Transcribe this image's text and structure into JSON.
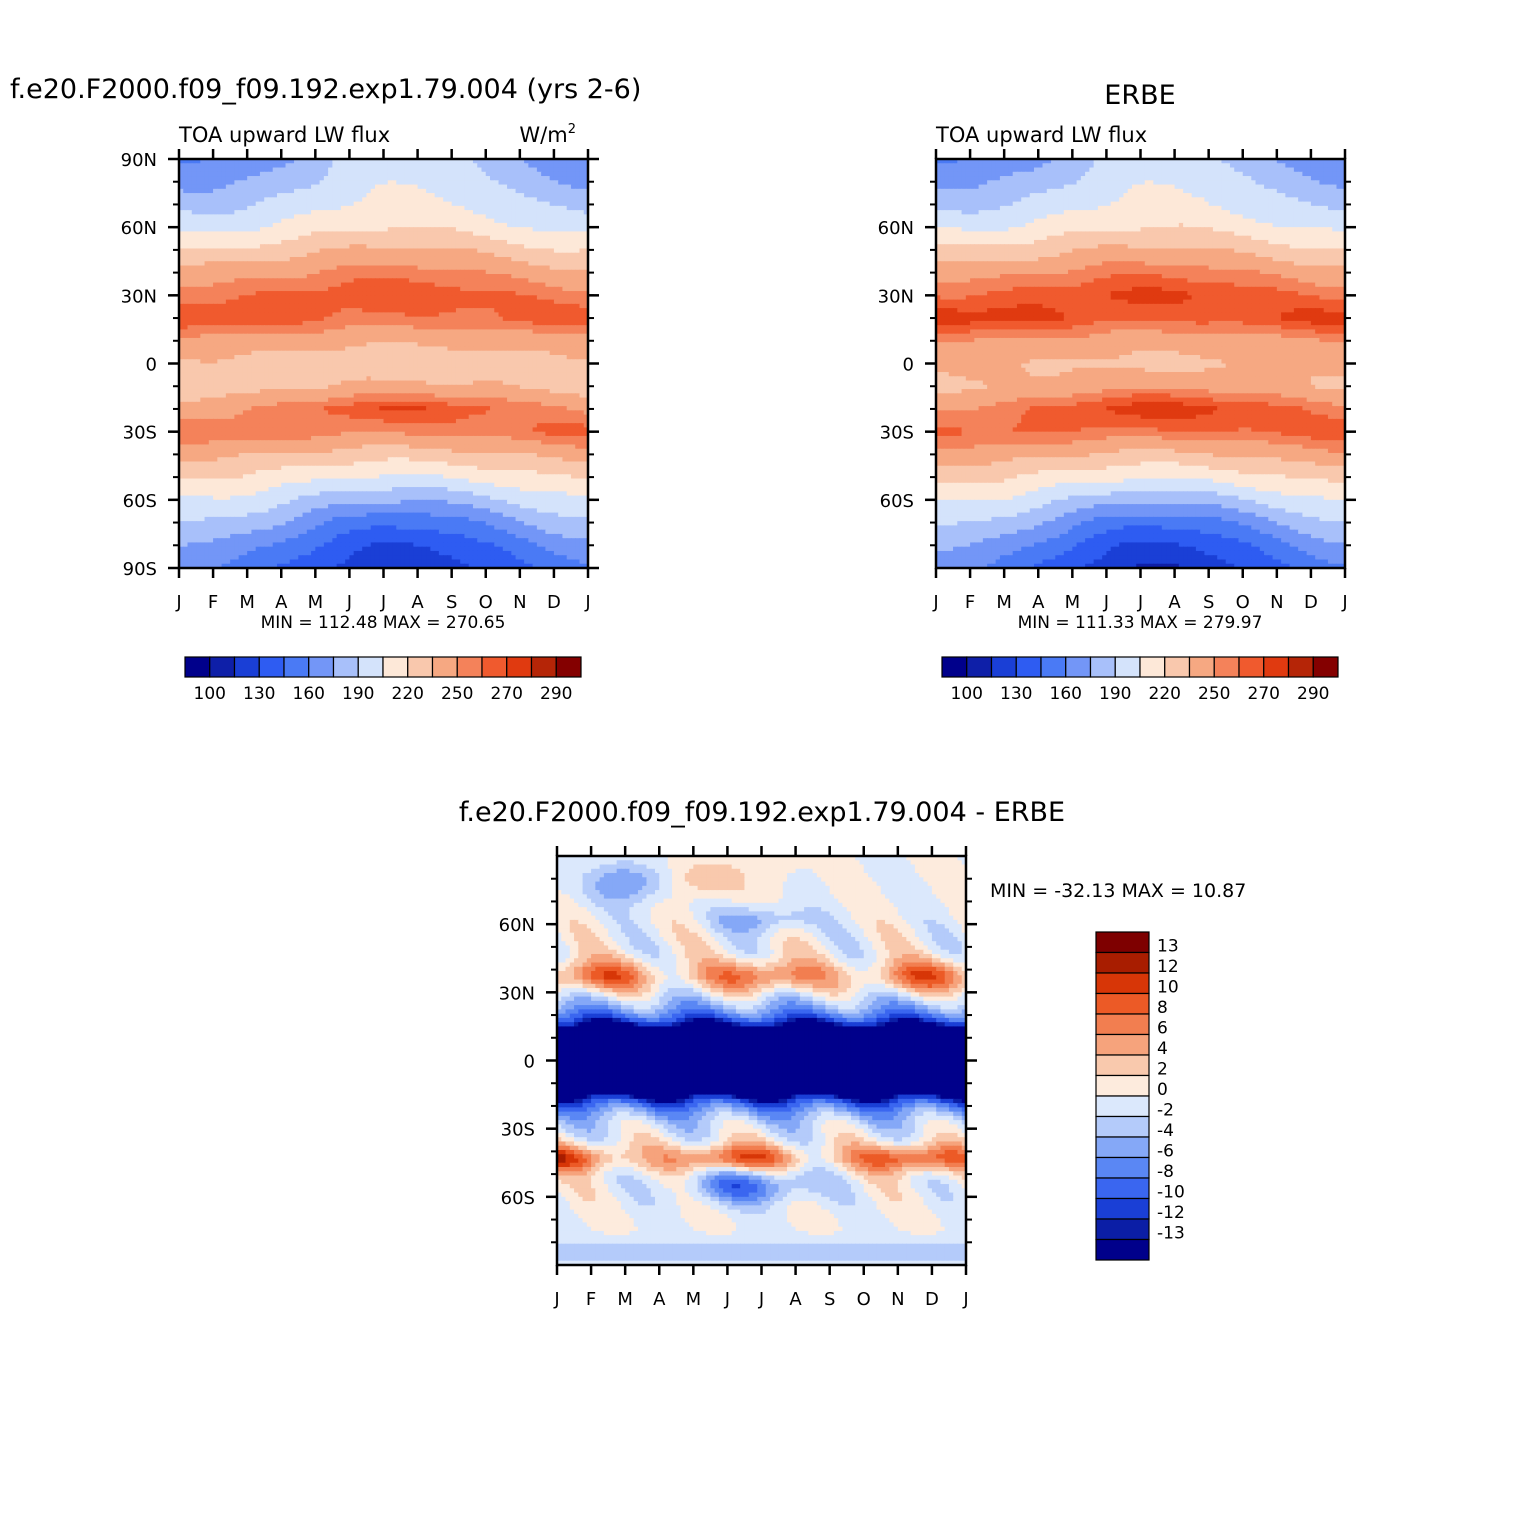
{
  "colors": {
    "abs_levels": [
      "#00008b",
      "#0e1fa8",
      "#1a3fd6",
      "#2e5cf2",
      "#4a7af5",
      "#7396f7",
      "#a8c0fa",
      "#d4e3fb",
      "#fde8d8",
      "#f9c8ad",
      "#f6a882",
      "#f4825a",
      "#f05a2e",
      "#e03a10",
      "#b52507",
      "#840000"
    ],
    "diff_levels": [
      "#00008b",
      "#0b1ea6",
      "#1a3fd6",
      "#3a66f0",
      "#5a87f4",
      "#85a8f7",
      "#b4cbfa",
      "#dbe8fc",
      "#fdebdd",
      "#f9c9ad",
      "#f6a37c",
      "#f27e50",
      "#ec5a26",
      "#d73607",
      "#a81d00",
      "#7e0000"
    ]
  },
  "chart_data": [
    {
      "id": "model",
      "type": "heatmap",
      "title": "f.e20.F2000.f09_f09.192.exp1.79.004 (yrs 2-6)",
      "subtitle_left": "TOA upward LW flux",
      "units": "W/m",
      "units_sup": "2",
      "x_ticks": [
        "J",
        "F",
        "M",
        "A",
        "M",
        "J",
        "J",
        "A",
        "S",
        "O",
        "N",
        "D",
        "J"
      ],
      "y_ticks": [
        "90N",
        "60N",
        "30N",
        "0",
        "30S",
        "60S",
        "90S"
      ],
      "y_values": [
        90,
        60,
        30,
        0,
        -30,
        -60,
        -90
      ],
      "ylim": [
        -90,
        90
      ],
      "stats": "MIN = 112.48 MAX = 270.65",
      "colorbar_labels": [
        "100",
        "130",
        "160",
        "190",
        "220",
        "250",
        "270",
        "290"
      ],
      "colorbar_levels": [
        100,
        115,
        130,
        145,
        160,
        175,
        190,
        205,
        220,
        235,
        250,
        260,
        270,
        280,
        290
      ],
      "profile_lat": [
        -90,
        -80,
        -70,
        -60,
        -50,
        -40,
        -30,
        -20,
        -10,
        0,
        10,
        20,
        30,
        40,
        50,
        60,
        70,
        80,
        90
      ],
      "profile_winter": [
        158,
        172,
        190,
        205,
        222,
        240,
        262,
        246,
        226,
        232,
        242,
        268,
        255,
        240,
        220,
        200,
        185,
        172,
        160
      ],
      "profile_summer": [
        118,
        130,
        150,
        178,
        205,
        228,
        252,
        270,
        238,
        220,
        236,
        255,
        268,
        256,
        240,
        222,
        212,
        205,
        200
      ],
      "north_extra": [
        0,
        0,
        0,
        0,
        0,
        0,
        0,
        0,
        0,
        0,
        0,
        0,
        0,
        0,
        0,
        0,
        0,
        0,
        0
      ]
    },
    {
      "id": "obs",
      "type": "heatmap",
      "title": "ERBE",
      "subtitle_left": "TOA upward LW flux",
      "x_ticks": [
        "J",
        "F",
        "M",
        "A",
        "M",
        "J",
        "J",
        "A",
        "S",
        "O",
        "N",
        "D",
        "J"
      ],
      "y_ticks": [
        "60N",
        "30N",
        "0",
        "30S",
        "60S"
      ],
      "y_values": [
        60,
        30,
        0,
        -30,
        -60
      ],
      "ylim": [
        -90,
        90
      ],
      "stats": "MIN = 111.33 MAX = 279.97",
      "colorbar_labels": [
        "100",
        "130",
        "160",
        "190",
        "220",
        "250",
        "270",
        "290"
      ],
      "colorbar_levels": [
        100,
        115,
        130,
        145,
        160,
        175,
        190,
        205,
        220,
        235,
        250,
        260,
        270,
        280,
        290
      ],
      "profile_lat": [
        -90,
        -80,
        -70,
        -60,
        -50,
        -40,
        -30,
        -20,
        -10,
        0,
        10,
        20,
        30,
        40,
        50,
        60,
        70,
        80,
        90
      ],
      "profile_winter": [
        160,
        175,
        192,
        208,
        226,
        246,
        264,
        252,
        232,
        238,
        248,
        276,
        258,
        242,
        222,
        202,
        186,
        173,
        160
      ],
      "profile_summer": [
        114,
        128,
        150,
        180,
        208,
        232,
        258,
        276,
        246,
        228,
        240,
        260,
        272,
        258,
        240,
        222,
        212,
        205,
        198
      ],
      "north_extra": [
        0,
        0,
        0,
        0,
        0,
        0,
        0,
        0,
        0,
        0,
        0,
        0,
        0,
        0,
        0,
        0,
        0,
        0,
        0
      ]
    },
    {
      "id": "diff",
      "type": "heatmap",
      "title": "f.e20.F2000.f09_f09.192.exp1.79.004 - ERBE",
      "x_ticks": [
        "J",
        "F",
        "M",
        "A",
        "M",
        "J",
        "J",
        "A",
        "S",
        "O",
        "N",
        "D",
        "J"
      ],
      "y_ticks": [
        "60N",
        "30N",
        "0",
        "30S",
        "60S"
      ],
      "y_values": [
        60,
        30,
        0,
        -30,
        -60
      ],
      "ylim": [
        -90,
        90
      ],
      "stats": "MIN = -32.13 MAX =  10.87",
      "colorbar_labels": [
        "13",
        "12",
        "10",
        "8",
        "6",
        "4",
        "2",
        "0",
        "-2",
        "-4",
        "-6",
        "-8",
        "-10",
        "-12",
        "-13"
      ],
      "colorbar_levels": [
        -13,
        -12,
        -10,
        -8,
        -6,
        -4,
        -2,
        0,
        2,
        4,
        6,
        8,
        10,
        12,
        13
      ]
    }
  ]
}
